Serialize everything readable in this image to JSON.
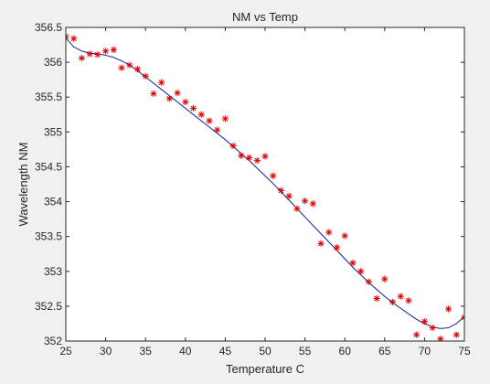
{
  "chart_data": {
    "type": "scatter",
    "title": "NM vs Temp",
    "xlabel": "Temperature C",
    "ylabel": "Wavelength NM",
    "xlim": [
      25,
      75
    ],
    "ylim": [
      352,
      356.5
    ],
    "xticks": [
      25,
      30,
      35,
      40,
      45,
      50,
      55,
      60,
      65,
      70,
      75
    ],
    "xtick_labels": [
      "25",
      "30",
      "35",
      "40",
      "45",
      "50",
      "55",
      "60",
      "65",
      "70",
      "75"
    ],
    "yticks": [
      352,
      352.5,
      353,
      353.5,
      354,
      354.5,
      355,
      355.5,
      356,
      356.5
    ],
    "ytick_labels": [
      "352",
      "352.5",
      "353",
      "353.5",
      "354",
      "354.5",
      "355",
      "355.5",
      "356",
      "356.5"
    ],
    "grid": false,
    "series": [
      {
        "kind": "markers",
        "marker": "asterisk",
        "color": "#e00000",
        "x": [
          25,
          26,
          27,
          28,
          29,
          30,
          31,
          32,
          33,
          34,
          35,
          36,
          37,
          38,
          39,
          40,
          41,
          42,
          43,
          44,
          45,
          46,
          47,
          48,
          49,
          50,
          51,
          52,
          53,
          54,
          55,
          56,
          57,
          58,
          59,
          60,
          61,
          62,
          63,
          64,
          65,
          66,
          67,
          68,
          69,
          70,
          71,
          72,
          73,
          74,
          75
        ],
        "y": [
          356.37,
          356.34,
          356.06,
          356.12,
          356.11,
          356.16,
          356.18,
          355.92,
          355.96,
          355.9,
          355.8,
          355.55,
          355.71,
          355.48,
          355.56,
          355.43,
          355.34,
          355.25,
          355.16,
          355.03,
          355.19,
          354.8,
          354.66,
          354.63,
          354.59,
          354.65,
          354.37,
          354.16,
          354.08,
          353.9,
          354.01,
          353.97,
          353.4,
          353.56,
          353.34,
          353.51,
          353.12,
          353.0,
          352.85,
          352.61,
          352.89,
          352.56,
          352.64,
          352.58,
          352.09,
          352.28,
          352.19,
          352.03,
          352.46,
          352.09,
          352.34
        ]
      },
      {
        "kind": "line",
        "color": "#2033a0",
        "x": [
          25,
          26,
          27,
          28,
          29,
          30,
          31,
          32,
          33,
          34,
          35,
          36,
          37,
          38,
          39,
          40,
          41,
          42,
          43,
          44,
          45,
          46,
          47,
          48,
          49,
          50,
          51,
          52,
          53,
          54,
          55,
          56,
          57,
          58,
          59,
          60,
          61,
          62,
          63,
          64,
          65,
          66,
          67,
          68,
          69,
          70,
          71,
          72,
          73,
          74,
          75
        ],
        "y": [
          356.35,
          356.22,
          356.16,
          356.13,
          356.12,
          356.1,
          356.07,
          356.02,
          355.96,
          355.88,
          355.79,
          355.7,
          355.61,
          355.52,
          355.43,
          355.34,
          355.25,
          355.16,
          355.07,
          354.98,
          354.89,
          354.79,
          354.69,
          354.59,
          354.48,
          354.37,
          354.26,
          354.14,
          354.02,
          353.9,
          353.78,
          353.66,
          353.54,
          353.42,
          353.3,
          353.18,
          353.06,
          352.95,
          352.84,
          352.74,
          352.64,
          352.55,
          352.47,
          352.39,
          352.31,
          352.25,
          352.2,
          352.18,
          352.19,
          352.25,
          352.35
        ]
      }
    ]
  },
  "colors": {
    "figure_background": "#f0f0f0",
    "axes_background": "#ffffff",
    "axis_color": "#262626"
  }
}
